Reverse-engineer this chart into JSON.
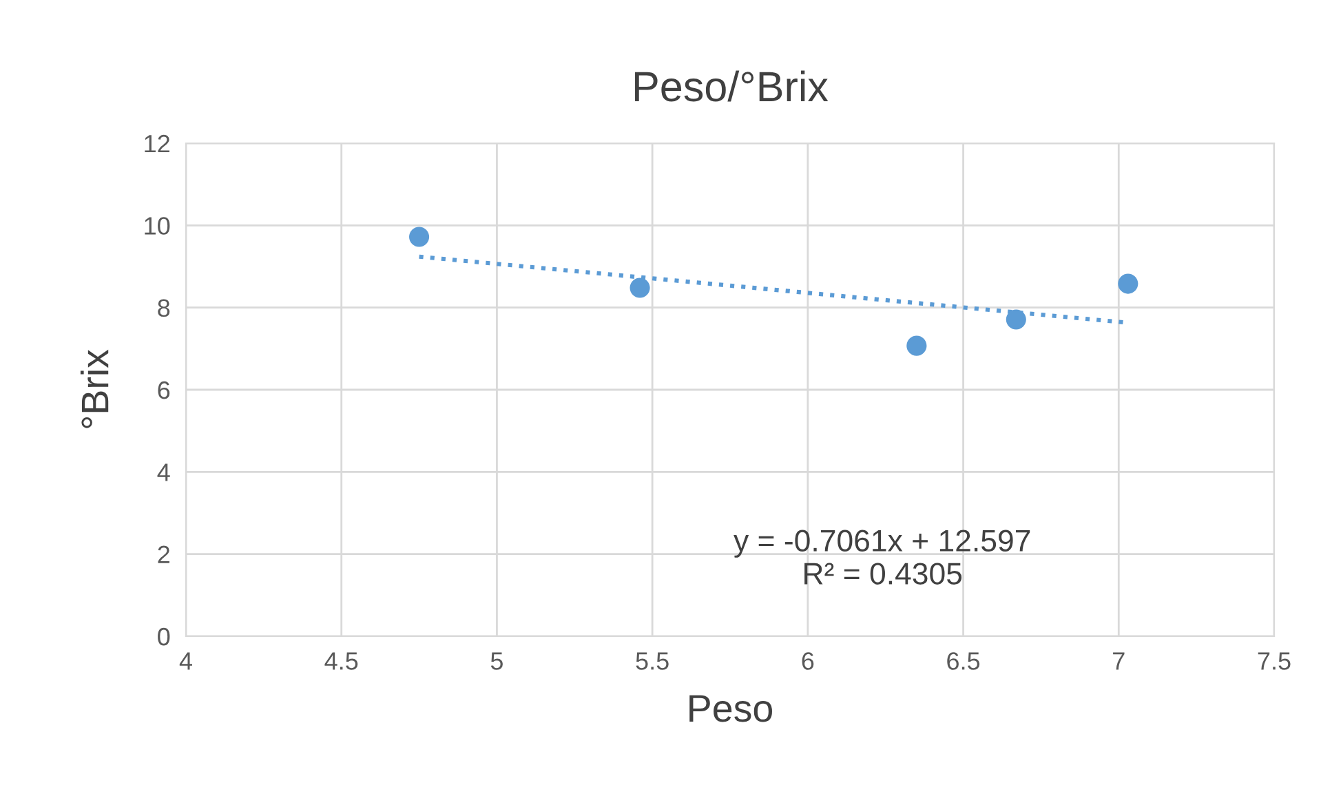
{
  "chart_data": {
    "type": "scatter",
    "title": "Peso/°Brix",
    "xlabel": "Peso",
    "ylabel": "°Brix",
    "series": [
      {
        "color": "#5b9bd5",
        "x": [
          4.75,
          5.46,
          6.35,
          6.67,
          7.03
        ],
        "values": [
          9.72,
          8.48,
          7.07,
          7.71,
          8.58
        ],
        "marker": "circle"
      },
      {
        "type": "line",
        "color": "#5b9bd5",
        "x": [
          4.75,
          7.03
        ],
        "values": [
          9.24,
          7.63
        ],
        "line_style": "dotted",
        "marker": "none"
      }
    ],
    "xlim": [
      4,
      7.5
    ],
    "xticks": [
      4,
      4.5,
      5,
      5.5,
      6,
      6.5,
      7,
      7.5
    ],
    "ylim": [
      0,
      12
    ],
    "yticks": [
      0,
      2,
      4,
      6,
      8,
      10,
      12
    ],
    "grid": true,
    "annotations": [
      "y = -0.7061x + 12.597\nR² = 0.4305"
    ]
  }
}
